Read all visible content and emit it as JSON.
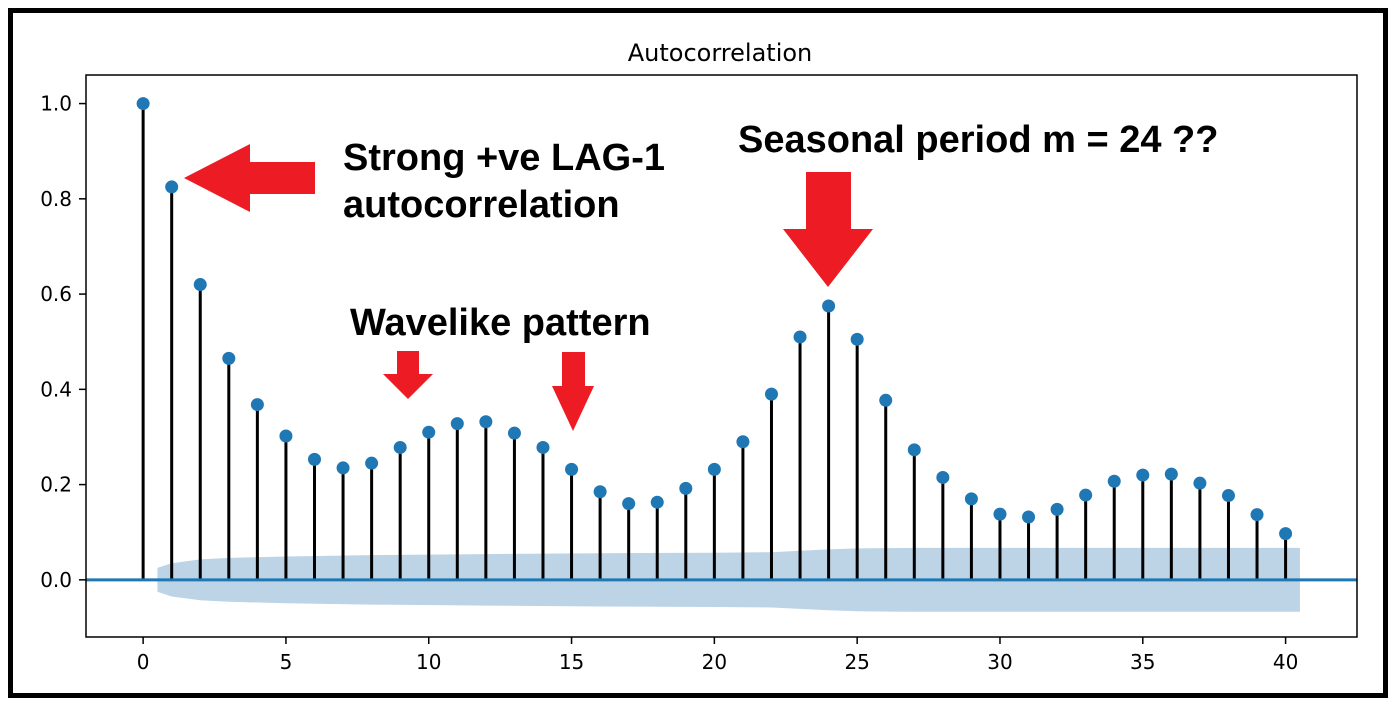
{
  "chart_data": {
    "type": "scatter",
    "title": "Autocorrelation",
    "xlabel": "",
    "ylabel": "",
    "xlim": [
      -2,
      42.5
    ],
    "ylim": [
      -0.12,
      1.06
    ],
    "x_ticks": [
      0,
      5,
      10,
      15,
      20,
      25,
      30,
      35,
      40
    ],
    "y_ticks": [
      0.0,
      0.2,
      0.4,
      0.6,
      0.8,
      1.0
    ],
    "x_tick_labels": [
      "0",
      "5",
      "10",
      "15",
      "20",
      "25",
      "30",
      "35",
      "40"
    ],
    "y_tick_labels": [
      "0.0",
      "0.2",
      "0.4",
      "0.6",
      "0.8",
      "1.0"
    ],
    "grid": false,
    "series": [
      {
        "style": "stem",
        "lags": [
          0,
          1,
          2,
          3,
          4,
          5,
          6,
          7,
          8,
          9,
          10,
          11,
          12,
          13,
          14,
          15,
          16,
          17,
          18,
          19,
          20,
          21,
          22,
          23,
          24,
          25,
          26,
          27,
          28,
          29,
          30,
          31,
          32,
          33,
          34,
          35,
          36,
          37,
          38,
          39,
          40
        ],
        "values": [
          1.0,
          0.825,
          0.62,
          0.465,
          0.368,
          0.302,
          0.253,
          0.235,
          0.245,
          0.278,
          0.31,
          0.328,
          0.332,
          0.308,
          0.278,
          0.232,
          0.185,
          0.16,
          0.163,
          0.192,
          0.232,
          0.29,
          0.39,
          0.51,
          0.575,
          0.505,
          0.377,
          0.273,
          0.215,
          0.17,
          0.138,
          0.132,
          0.148,
          0.178,
          0.207,
          0.22,
          0.222,
          0.203,
          0.177,
          0.137,
          0.097
        ]
      }
    ],
    "confidence_band": {
      "x": [
        0.5,
        1,
        2,
        3,
        5,
        8,
        12,
        16,
        20,
        22,
        23,
        24,
        25,
        27,
        30,
        35,
        40,
        40.5
      ],
      "upper": [
        0.025,
        0.035,
        0.043,
        0.046,
        0.049,
        0.052,
        0.054,
        0.056,
        0.057,
        0.058,
        0.061,
        0.064,
        0.066,
        0.067,
        0.067,
        0.067,
        0.067,
        0.067
      ],
      "lower": [
        -0.025,
        -0.035,
        -0.043,
        -0.046,
        -0.049,
        -0.052,
        -0.054,
        -0.056,
        -0.057,
        -0.058,
        -0.061,
        -0.064,
        -0.066,
        -0.067,
        -0.067,
        -0.067,
        -0.067,
        -0.067
      ]
    },
    "zero_line": 0.0,
    "colors": {
      "marker": "#1f77b4",
      "stem": "#000000",
      "zero_line": "#1f77b4",
      "band": "#bcd4e6",
      "arrow": "#ed1c24"
    },
    "annotations": [
      {
        "id": "lag1",
        "text": "Strong +ve LAG-1"
      },
      {
        "id": "lag1b",
        "text": "autocorrelation"
      },
      {
        "id": "wave",
        "text": "Wavelike pattern"
      },
      {
        "id": "season",
        "text": "Seasonal period m = 24 ??"
      }
    ],
    "arrows": [
      {
        "name": "lag1-arrow-icon",
        "direction": "left"
      },
      {
        "name": "wave-arrow-1-icon",
        "direction": "down"
      },
      {
        "name": "wave-arrow-2-icon",
        "direction": "down"
      },
      {
        "name": "season-arrow-icon",
        "direction": "down"
      }
    ]
  }
}
